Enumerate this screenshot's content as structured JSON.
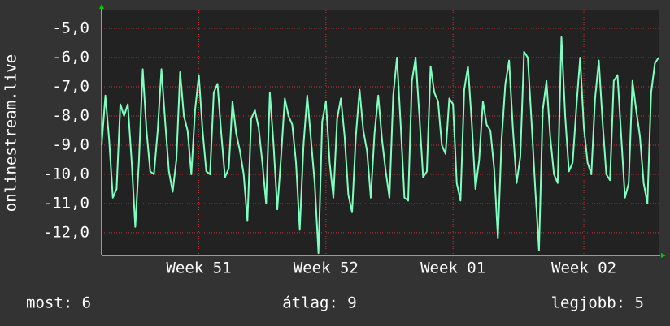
{
  "chart_data": {
    "type": "line",
    "y_label": "onlinestream.live",
    "ylim": [
      -12.78,
      -4.36
    ],
    "yticks": [
      {
        "value": -5,
        "label": "-5,0"
      },
      {
        "value": -6,
        "label": "-6,0"
      },
      {
        "value": -7,
        "label": "-7,0"
      },
      {
        "value": -8,
        "label": "-8,0"
      },
      {
        "value": -9,
        "label": "-9,0"
      },
      {
        "value": -10,
        "label": "-10,0"
      },
      {
        "value": -11,
        "label": "-11,0"
      },
      {
        "value": -12,
        "label": "-12,0"
      }
    ],
    "xlim": [
      0,
      149
    ],
    "xticks": [
      {
        "value": 26,
        "label": "Week 51"
      },
      {
        "value": 60,
        "label": "Week 52"
      },
      {
        "value": 94,
        "label": "Week 01"
      },
      {
        "value": 129,
        "label": "Week 02"
      }
    ],
    "grid": true,
    "color": "#7fffbf",
    "values": [
      -9,
      -7.3,
      -8.8,
      -10.8,
      -10.5,
      -7.6,
      -8,
      -7.6,
      -9.5,
      -11.8,
      -9.5,
      -6.4,
      -8.5,
      -9.9,
      -10,
      -8.5,
      -6.4,
      -8.2,
      -9.9,
      -10.6,
      -9.5,
      -6.5,
      -8,
      -8.5,
      -10,
      -7.8,
      -6.6,
      -8.5,
      -9.9,
      -10,
      -7.2,
      -6.9,
      -8.6,
      -10.1,
      -9.8,
      -7.5,
      -8.6,
      -9.2,
      -10,
      -11.6,
      -8.1,
      -7.8,
      -8.4,
      -9.6,
      -11,
      -7.2,
      -9,
      -11.2,
      -9.4,
      -7.4,
      -8,
      -8.3,
      -9.6,
      -11.9,
      -9,
      -7.3,
      -8.8,
      -10.3,
      -12.7,
      -8.2,
      -7.5,
      -9.6,
      -10.8,
      -8.1,
      -7.4,
      -8.7,
      -10.7,
      -11.3,
      -8.7,
      -7.1,
      -8.5,
      -9.2,
      -10.8,
      -8.6,
      -7.3,
      -8.8,
      -9.9,
      -10.8,
      -7.3,
      -6,
      -8.3,
      -10.8,
      -10.9,
      -6.8,
      -6,
      -8,
      -10.1,
      -9.9,
      -6.3,
      -7.2,
      -7.5,
      -9,
      -9.3,
      -7.4,
      -7.6,
      -10.3,
      -10.9,
      -7.1,
      -6.3,
      -8.2,
      -10.5,
      -9.5,
      -7.5,
      -8.3,
      -8.5,
      -9.8,
      -12.2,
      -8.8,
      -6.9,
      -6.1,
      -8.4,
      -10.3,
      -9.4,
      -5.8,
      -6,
      -8.2,
      -10.5,
      -12.6,
      -7.8,
      -6.8,
      -8.7,
      -10,
      -10.3,
      -5.3,
      -8,
      -9.9,
      -9.6,
      -7.7,
      -6,
      -8.4,
      -9.6,
      -10,
      -7.4,
      -6.1,
      -8.2,
      -10,
      -10.2,
      -6.8,
      -6.6,
      -8.7,
      -10.8,
      -10.3,
      -6.8,
      -7.8,
      -8.7,
      -10.3,
      -11,
      -7.2,
      -6.2,
      -6
    ],
    "legend_stats": [
      "most: 6",
      "átlag: 9",
      "legjobb: 5"
    ]
  }
}
